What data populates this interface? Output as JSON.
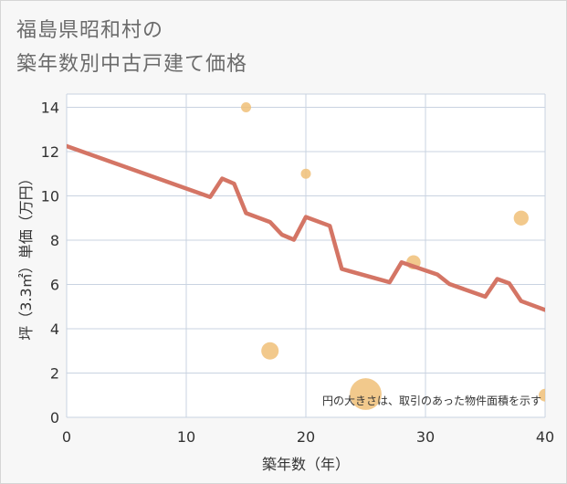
{
  "title_line1": "福島県昭和村の",
  "title_line2": "築年数別中古戸建て価格",
  "chart_data": {
    "type": "scatter",
    "title": "福島県昭和村の築年数別中古戸建て価格",
    "xlabel": "築年数（年）",
    "ylabel": "坪（3.3㎡）単価（万円）",
    "xlim": [
      0,
      40
    ],
    "ylim": [
      0,
      14.6
    ],
    "xticks": [
      0,
      10,
      20,
      30,
      40
    ],
    "yticks": [
      0,
      2,
      4,
      6,
      8,
      10,
      12,
      14
    ],
    "grid": true,
    "note": "円の大きさは、取引のあった物件面積を示す",
    "colors": {
      "line": "#d47565",
      "bubble": "#f0c078",
      "grid": "#c9d3e1",
      "plot_bg": "#ffffff"
    },
    "series": [
      {
        "name": "trend",
        "type": "line",
        "x": [
          0,
          12,
          13,
          14,
          15,
          17,
          18,
          19,
          20,
          22,
          23,
          27,
          28,
          31,
          32,
          35,
          36,
          37,
          38,
          40
        ],
        "y": [
          12.25,
          9.95,
          10.78,
          10.55,
          9.22,
          8.82,
          8.25,
          8.02,
          9.05,
          8.65,
          6.7,
          6.1,
          7.0,
          6.45,
          6.02,
          5.45,
          6.25,
          6.05,
          5.25,
          4.85
        ]
      },
      {
        "name": "transactions",
        "type": "bubble",
        "points": [
          {
            "x": 15,
            "y": 14.0,
            "size": 1
          },
          {
            "x": 20,
            "y": 11.0,
            "size": 1
          },
          {
            "x": 17,
            "y": 3.0,
            "size": 3
          },
          {
            "x": 25,
            "y": 1.05,
            "size": 10
          },
          {
            "x": 29,
            "y": 7.0,
            "size": 2
          },
          {
            "x": 38,
            "y": 9.0,
            "size": 2.2
          },
          {
            "x": 40,
            "y": 1.0,
            "size": 1.6
          }
        ]
      }
    ]
  }
}
